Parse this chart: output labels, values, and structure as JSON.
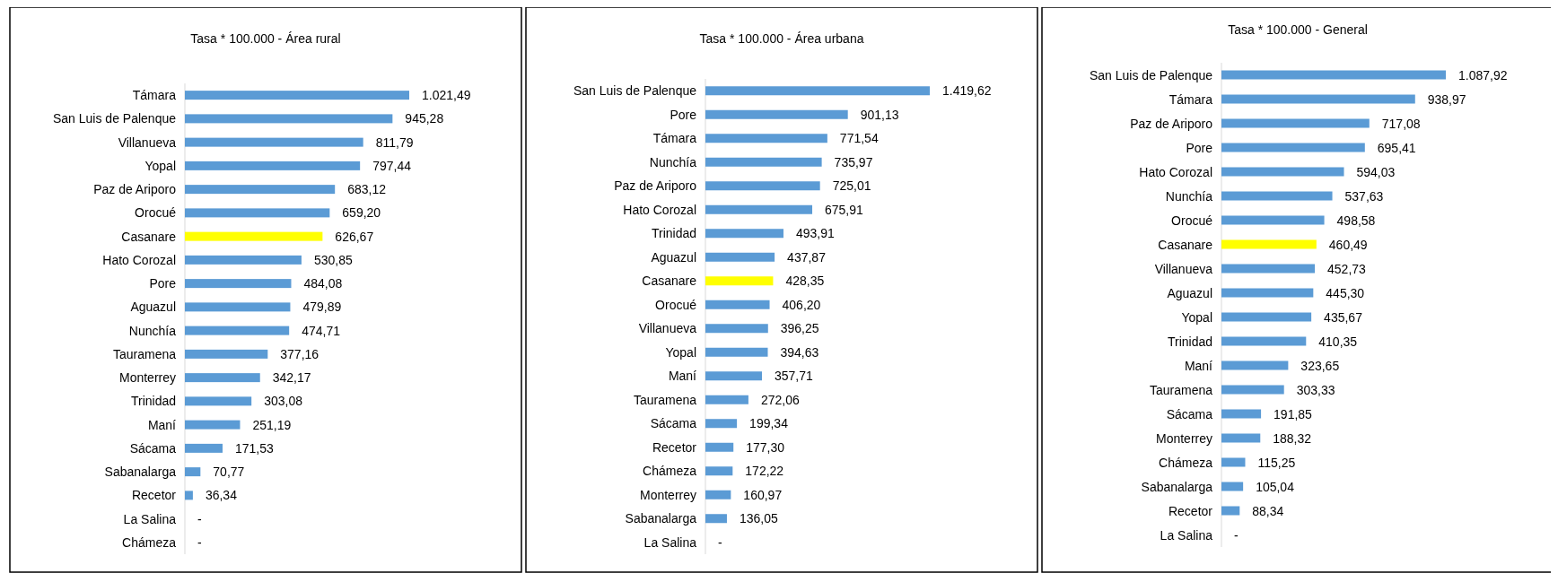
{
  "chart_data": [
    {
      "type": "bar",
      "orientation": "horizontal",
      "title": "Tasa  * 100.000 - Área rural",
      "categories": [
        "Támara",
        "San Luis de Palenque",
        "Villanueva",
        "Yopal",
        "Paz de Ariporo",
        "Orocué",
        "Casanare",
        "Hato Corozal",
        "Pore",
        "Aguazul",
        "Nunchía",
        "Tauramena",
        "Monterrey",
        "Trinidad",
        "Maní",
        "Sácama",
        "Sabanalarga",
        "Recetor",
        "La Salina",
        "Chámeza"
      ],
      "values": [
        1021.49,
        945.28,
        811.79,
        797.44,
        683.12,
        659.2,
        626.67,
        530.85,
        484.08,
        479.89,
        474.71,
        377.16,
        342.17,
        303.08,
        251.19,
        171.53,
        70.77,
        36.34,
        null,
        null
      ],
      "value_labels": [
        "1.021,49",
        "945,28",
        "811,79",
        "797,44",
        "683,12",
        "659,20",
        "626,67",
        "530,85",
        "484,08",
        "479,89",
        "474,71",
        "377,16",
        "342,17",
        "303,08",
        "251,19",
        "171,53",
        "70,77",
        "36,34",
        "-",
        "-"
      ],
      "colors": [
        "#5b9bd5",
        "#5b9bd5",
        "#5b9bd5",
        "#5b9bd5",
        "#5b9bd5",
        "#5b9bd5",
        "#ffff00",
        "#5b9bd5",
        "#5b9bd5",
        "#5b9bd5",
        "#5b9bd5",
        "#5b9bd5",
        "#5b9bd5",
        "#5b9bd5",
        "#5b9bd5",
        "#5b9bd5",
        "#5b9bd5",
        "#5b9bd5",
        "#5b9bd5",
        "#5b9bd5"
      ],
      "tick_labels": "y"
    },
    {
      "type": "bar",
      "orientation": "horizontal",
      "title": "Tasa  * 100.000 - Área urbana",
      "categories": [
        "San Luis de Palenque",
        "Pore",
        "Támara",
        "Nunchía",
        "Paz de Ariporo",
        "Hato Corozal",
        "Trinidad",
        "Aguazul",
        "Casanare",
        "Orocué",
        "Villanueva",
        "Yopal",
        "Maní",
        "Tauramena",
        "Sácama",
        "Recetor",
        "Chámeza",
        "Monterrey",
        "Sabanalarga",
        "La Salina"
      ],
      "values": [
        1419.62,
        901.13,
        771.54,
        735.97,
        725.01,
        675.91,
        493.91,
        437.87,
        428.35,
        406.2,
        396.25,
        394.63,
        357.71,
        272.06,
        199.34,
        177.3,
        172.22,
        160.97,
        136.05,
        null
      ],
      "value_labels": [
        "1.419,62",
        "901,13",
        "771,54",
        "735,97",
        "725,01",
        "675,91",
        "493,91",
        "437,87",
        "428,35",
        "406,20",
        "396,25",
        "394,63",
        "357,71",
        "272,06",
        "199,34",
        "177,30",
        "172,22",
        "160,97",
        "136,05",
        "-"
      ],
      "colors": [
        "#5b9bd5",
        "#5b9bd5",
        "#5b9bd5",
        "#5b9bd5",
        "#5b9bd5",
        "#5b9bd5",
        "#5b9bd5",
        "#5b9bd5",
        "#ffff00",
        "#5b9bd5",
        "#5b9bd5",
        "#5b9bd5",
        "#5b9bd5",
        "#5b9bd5",
        "#5b9bd5",
        "#5b9bd5",
        "#5b9bd5",
        "#5b9bd5",
        "#5b9bd5",
        "#5b9bd5"
      ],
      "tick_labels": "y"
    },
    {
      "type": "bar",
      "orientation": "horizontal",
      "title": "Tasa  * 100.000 - General",
      "categories": [
        "San Luis de Palenque",
        "Támara",
        "Paz de Ariporo",
        "Pore",
        "Hato Corozal",
        "Nunchía",
        "Orocué",
        "Casanare",
        "Villanueva",
        "Aguazul",
        "Yopal",
        "Trinidad",
        "Maní",
        "Tauramena",
        "Sácama",
        "Monterrey",
        "Chámeza",
        "Sabanalarga",
        "Recetor",
        "La Salina"
      ],
      "values": [
        1087.92,
        938.97,
        717.08,
        695.41,
        594.03,
        537.63,
        498.58,
        460.49,
        452.73,
        445.3,
        435.67,
        410.35,
        323.65,
        303.33,
        191.85,
        188.32,
        115.25,
        105.04,
        88.34,
        null
      ],
      "value_labels": [
        "1.087,92",
        "938,97",
        "717,08",
        "695,41",
        "594,03",
        "537,63",
        "498,58",
        "460,49",
        "452,73",
        "445,30",
        "435,67",
        "410,35",
        "323,65",
        "303,33",
        "191,85",
        "188,32",
        "115,25",
        "105,04",
        "88,34",
        "-"
      ],
      "colors": [
        "#5b9bd5",
        "#5b9bd5",
        "#5b9bd5",
        "#5b9bd5",
        "#5b9bd5",
        "#5b9bd5",
        "#5b9bd5",
        "#ffff00",
        "#5b9bd5",
        "#5b9bd5",
        "#5b9bd5",
        "#5b9bd5",
        "#5b9bd5",
        "#5b9bd5",
        "#5b9bd5",
        "#5b9bd5",
        "#5b9bd5",
        "#5b9bd5",
        "#5b9bd5",
        "#5b9bd5"
      ],
      "tick_labels": "y"
    }
  ]
}
